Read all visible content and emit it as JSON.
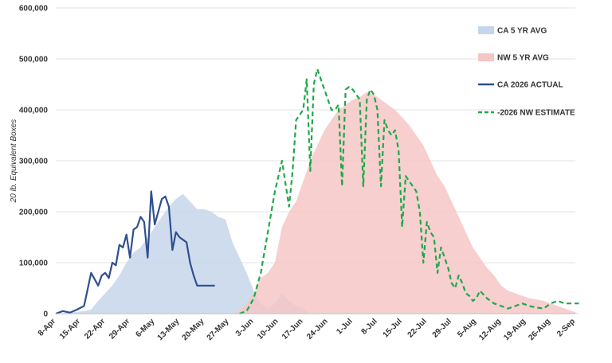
{
  "chart_data": {
    "type": "area",
    "title": "",
    "xlabel": "",
    "ylabel": "20 lb. Equivalent Boxes",
    "ylim": [
      0,
      600000
    ],
    "yticks": [
      0,
      100000,
      200000,
      300000,
      400000,
      500000,
      600000
    ],
    "ytick_labels": [
      "0",
      "100,000",
      "200,000",
      "300,000",
      "400,000",
      "500,000",
      "600,000"
    ],
    "xticks": [
      0,
      7,
      14,
      21,
      28,
      35,
      42,
      49,
      56,
      63,
      70,
      77,
      84,
      91,
      98,
      105,
      112,
      119,
      126,
      133,
      140,
      147
    ],
    "xtick_labels": [
      "8-Apr",
      "15-Apr",
      "22-Apr",
      "29-Apr",
      "6-May",
      "13-May",
      "20-May",
      "27-May",
      "3-Jun",
      "10-Jun",
      "17-Jun",
      "24-Jun",
      "1-Jul",
      "8-Jul",
      "15-Jul",
      "22-Jul",
      "29-Jul",
      "5-Aug",
      "12-Aug",
      "19-Aug",
      "26-Aug",
      "2-Sep"
    ],
    "x_unit": "days since 8-Apr",
    "grid": true,
    "legend": "right",
    "series": [
      {
        "name": "CA 5 YR AVG",
        "style": "area",
        "color": "#c5d6ea",
        "x": [
          0,
          4,
          8,
          10,
          12,
          14,
          16,
          18,
          20,
          22,
          24,
          26,
          28,
          30,
          32,
          34,
          35,
          36,
          38,
          40,
          42,
          44,
          46,
          48,
          50,
          52,
          54,
          56,
          58,
          60,
          62,
          64,
          66,
          68,
          70,
          72
        ],
        "y": [
          0,
          2000,
          5000,
          8000,
          25000,
          40000,
          55000,
          75000,
          100000,
          120000,
          130000,
          150000,
          170000,
          190000,
          210000,
          225000,
          230000,
          235000,
          220000,
          205000,
          205000,
          200000,
          190000,
          185000,
          140000,
          110000,
          80000,
          45000,
          20000,
          10000,
          20000,
          40000,
          25000,
          15000,
          10000,
          0
        ]
      },
      {
        "name": "NW 5 YR AVG",
        "style": "area",
        "color": "#f4c7c6",
        "x": [
          50,
          52,
          54,
          56,
          58,
          60,
          62,
          64,
          66,
          68,
          70,
          72,
          74,
          76,
          78,
          80,
          82,
          84,
          86,
          88,
          90,
          92,
          94,
          96,
          98,
          100,
          102,
          104,
          106,
          108,
          110,
          112,
          114,
          116,
          118,
          120,
          122,
          124,
          126,
          128,
          130,
          132,
          134,
          136,
          138,
          140,
          142,
          144,
          146,
          148
        ],
        "y": [
          0,
          5000,
          20000,
          40000,
          70000,
          80000,
          100000,
          170000,
          200000,
          220000,
          260000,
          300000,
          330000,
          360000,
          380000,
          400000,
          410000,
          420000,
          425000,
          435000,
          430000,
          420000,
          410000,
          400000,
          385000,
          370000,
          350000,
          330000,
          300000,
          270000,
          250000,
          220000,
          190000,
          160000,
          130000,
          110000,
          90000,
          75000,
          55000,
          45000,
          40000,
          35000,
          30000,
          28000,
          25000,
          20000,
          15000,
          10000,
          5000,
          0
        ]
      },
      {
        "name": "CA 2026  ACTUAL",
        "style": "solid",
        "color": "#2f4f8f",
        "x": [
          0,
          2,
          4,
          6,
          8,
          10,
          12,
          13,
          14,
          15,
          16,
          17,
          18,
          19,
          20,
          21,
          22,
          23,
          24,
          25,
          26,
          27,
          28,
          29,
          30,
          31,
          32,
          33,
          34,
          35,
          36,
          37,
          38,
          39,
          40,
          41,
          42,
          43,
          44,
          45
        ],
        "y": [
          0,
          5000,
          2000,
          8000,
          15000,
          80000,
          55000,
          75000,
          80000,
          70000,
          100000,
          95000,
          135000,
          130000,
          155000,
          110000,
          165000,
          170000,
          190000,
          180000,
          110000,
          240000,
          175000,
          200000,
          225000,
          230000,
          210000,
          125000,
          160000,
          150000,
          145000,
          140000,
          100000,
          75000,
          55000,
          55000,
          55000,
          55000,
          55000,
          55000
        ]
      },
      {
        "name": "-2026 NW ESTIMATE",
        "style": "dashed",
        "color": "#1fa84a",
        "x": [
          52,
          54,
          56,
          58,
          60,
          62,
          64,
          66,
          67,
          68,
          69,
          70,
          71,
          72,
          73,
          74,
          75,
          76,
          77,
          78,
          79,
          80,
          81,
          82,
          83,
          84,
          85,
          86,
          87,
          88,
          89,
          90,
          91,
          92,
          93,
          94,
          95,
          96,
          97,
          98,
          99,
          100,
          101,
          102,
          103,
          104,
          105,
          106,
          107,
          108,
          109,
          110,
          111,
          112,
          113,
          114,
          115,
          116,
          117,
          118,
          119,
          120,
          122,
          124,
          126,
          128,
          130,
          132,
          134,
          136,
          138,
          140,
          142,
          144,
          146,
          148
        ],
        "y": [
          0,
          5000,
          30000,
          80000,
          160000,
          240000,
          300000,
          210000,
          280000,
          380000,
          390000,
          400000,
          460000,
          280000,
          450000,
          480000,
          460000,
          440000,
          420000,
          400000,
          400000,
          410000,
          250000,
          440000,
          445000,
          440000,
          430000,
          420000,
          250000,
          420000,
          440000,
          430000,
          400000,
          250000,
          380000,
          360000,
          350000,
          360000,
          320000,
          170000,
          270000,
          260000,
          250000,
          240000,
          200000,
          100000,
          180000,
          160000,
          150000,
          80000,
          130000,
          110000,
          90000,
          60000,
          50000,
          75000,
          60000,
          40000,
          35000,
          25000,
          30000,
          45000,
          30000,
          20000,
          15000,
          10000,
          15000,
          20000,
          15000,
          12000,
          10000,
          20000,
          25000,
          20000,
          20000,
          20000
        ]
      }
    ]
  }
}
